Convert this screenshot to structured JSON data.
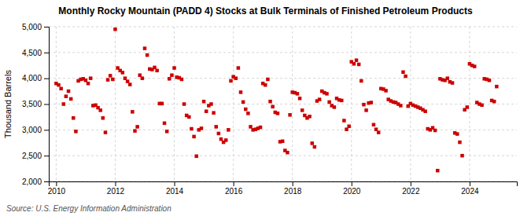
{
  "chart_data": {
    "type": "scatter",
    "title": "Monthly Rocky Mountain (PADD 4) Stocks at Bulk Terminals of Finished Petroleum Products",
    "ylabel": "Thousand Barrels",
    "annotations": [
      "Source: U.S. Energy Information Administration"
    ],
    "color": "#cc0000",
    "marker": "square",
    "grid": true,
    "xlim": [
      2009.75,
      2025.6
    ],
    "xticks": [
      2010,
      2012,
      2014,
      2016,
      2018,
      2020,
      2022,
      2024
    ],
    "ylim": [
      2000,
      5000
    ],
    "yticks": [
      {
        "value": 2000,
        "label": "2,000"
      },
      {
        "value": 2500,
        "label": "2,500"
      },
      {
        "value": 3000,
        "label": "3,000"
      },
      {
        "value": 3500,
        "label": "3,500"
      },
      {
        "value": 4000,
        "label": "4,000"
      },
      {
        "value": 4500,
        "label": "4,500"
      },
      {
        "value": 5000,
        "label": "5,000"
      }
    ],
    "x": [
      2010.0,
      2010.083,
      2010.167,
      2010.25,
      2010.333,
      2010.417,
      2010.5,
      2010.583,
      2010.667,
      2010.75,
      2010.833,
      2010.917,
      2011.0,
      2011.083,
      2011.167,
      2011.25,
      2011.333,
      2011.417,
      2011.5,
      2011.583,
      2011.667,
      2011.75,
      2011.833,
      2011.917,
      2012.0,
      2012.083,
      2012.167,
      2012.25,
      2012.333,
      2012.417,
      2012.5,
      2012.583,
      2012.667,
      2012.75,
      2012.833,
      2012.917,
      2013.0,
      2013.083,
      2013.167,
      2013.25,
      2013.333,
      2013.417,
      2013.5,
      2013.583,
      2013.667,
      2013.75,
      2013.833,
      2013.917,
      2014.0,
      2014.083,
      2014.167,
      2014.25,
      2014.333,
      2014.417,
      2014.5,
      2014.583,
      2014.667,
      2014.75,
      2014.833,
      2014.917,
      2015.0,
      2015.083,
      2015.167,
      2015.25,
      2015.333,
      2015.417,
      2015.5,
      2015.583,
      2015.667,
      2015.75,
      2015.833,
      2015.917,
      2016.0,
      2016.083,
      2016.167,
      2016.25,
      2016.333,
      2016.417,
      2016.5,
      2016.583,
      2016.667,
      2016.75,
      2016.833,
      2016.917,
      2017.0,
      2017.083,
      2017.167,
      2017.25,
      2017.333,
      2017.417,
      2017.5,
      2017.583,
      2017.667,
      2017.75,
      2017.833,
      2017.917,
      2018.0,
      2018.083,
      2018.167,
      2018.25,
      2018.333,
      2018.417,
      2018.5,
      2018.583,
      2018.667,
      2018.75,
      2018.833,
      2018.917,
      2019.0,
      2019.083,
      2019.167,
      2019.25,
      2019.333,
      2019.417,
      2019.5,
      2019.583,
      2019.667,
      2019.75,
      2019.833,
      2019.917,
      2020.0,
      2020.083,
      2020.167,
      2020.25,
      2020.333,
      2020.417,
      2020.5,
      2020.583,
      2020.667,
      2020.75,
      2020.833,
      2020.917,
      2021.0,
      2021.083,
      2021.167,
      2021.25,
      2021.333,
      2021.417,
      2021.5,
      2021.583,
      2021.667,
      2021.75,
      2021.833,
      2021.917,
      2022.0,
      2022.083,
      2022.167,
      2022.25,
      2022.333,
      2022.417,
      2022.5,
      2022.583,
      2022.667,
      2022.75,
      2022.833,
      2022.917,
      2023.0,
      2023.083,
      2023.167,
      2023.25,
      2023.333,
      2023.417,
      2023.5,
      2023.583,
      2023.667,
      2023.75,
      2023.833,
      2023.917,
      2024.0,
      2024.083,
      2024.167,
      2024.25,
      2024.333,
      2024.417,
      2024.5,
      2024.583,
      2024.667,
      2024.75,
      2024.833,
      2024.917
    ],
    "values": [
      3900,
      3870,
      3800,
      3500,
      3650,
      3750,
      3600,
      3230,
      2970,
      3950,
      3980,
      3990,
      3960,
      3900,
      4000,
      3470,
      3480,
      3430,
      3380,
      3230,
      2950,
      3970,
      4050,
      3980,
      4950,
      4200,
      4150,
      4110,
      4000,
      3940,
      3880,
      3350,
      2980,
      3060,
      4060,
      4000,
      4580,
      4450,
      4180,
      4170,
      4210,
      4150,
      3510,
      3510,
      3130,
      2970,
      3990,
      4060,
      4200,
      4020,
      4010,
      3980,
      3500,
      3280,
      3250,
      3020,
      2870,
      2490,
      3000,
      3030,
      3550,
      3360,
      3470,
      3500,
      3330,
      3060,
      2930,
      2820,
      2760,
      2800,
      3000,
      3950,
      4030,
      4000,
      4200,
      3730,
      3540,
      3400,
      3320,
      3060,
      3000,
      3010,
      3030,
      3050,
      3900,
      3870,
      3980,
      3550,
      3450,
      3340,
      3320,
      2770,
      2780,
      2600,
      2560,
      3290,
      3730,
      3720,
      3700,
      3610,
      3380,
      3280,
      3230,
      3260,
      2740,
      2670,
      3560,
      3590,
      3750,
      3720,
      3700,
      3540,
      3470,
      3440,
      3610,
      3580,
      3570,
      3180,
      3010,
      3070,
      4320,
      4280,
      4350,
      4270,
      3950,
      3490,
      3380,
      3520,
      3530,
      3100,
      3010,
      2950,
      3800,
      3790,
      3760,
      3590,
      3560,
      3540,
      3530,
      3500,
      3470,
      4120,
      4040,
      3460,
      3510,
      3480,
      3460,
      3440,
      3420,
      3390,
      3360,
      3020,
      3000,
      3040,
      2990,
      2210,
      3990,
      3970,
      3960,
      4000,
      3930,
      3910,
      2940,
      2920,
      2760,
      2500,
      3390,
      3440,
      4280,
      4250,
      4230,
      3530,
      3500,
      3480,
      3990,
      3980,
      3960,
      3570,
      3550,
      3840
    ]
  }
}
